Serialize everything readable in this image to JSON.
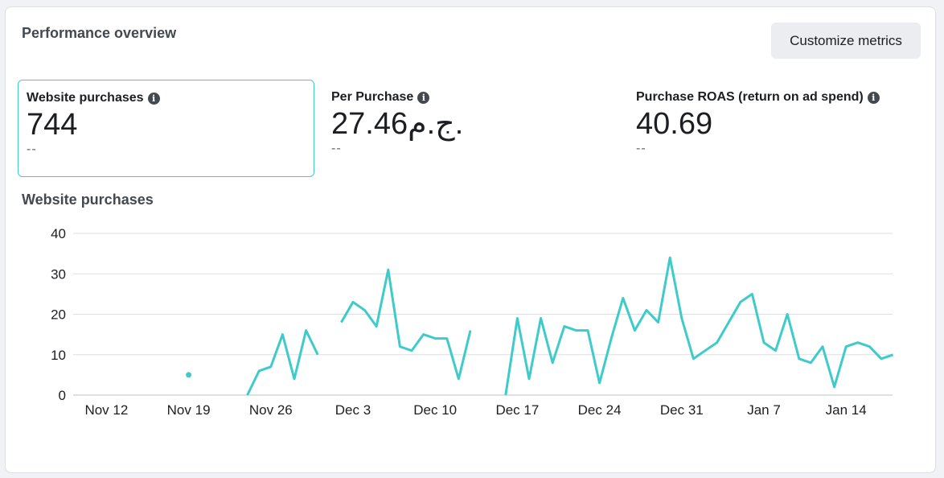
{
  "header": {
    "title": "Performance overview",
    "customize_label": "Customize metrics"
  },
  "metrics": [
    {
      "label": "Website purchases",
      "value": "744",
      "delta": "--",
      "selected": true
    },
    {
      "label": "Per Purchase",
      "value": "27.46ج.م.",
      "delta": "--",
      "selected": false
    },
    {
      "label": "Purchase ROAS (return on ad spend)",
      "value": "40.69",
      "delta": "--",
      "selected": false
    }
  ],
  "colors": {
    "line": "#3ecbca",
    "grid": "#dddfe2",
    "selected_border": "#3ecbca"
  },
  "icons": {
    "info": "info-icon"
  },
  "chart_data": {
    "type": "line",
    "title": "Website purchases",
    "ylim": [
      0,
      40
    ],
    "yticks": [
      0,
      10,
      20,
      30,
      40
    ],
    "grid": true,
    "x_start": "Nov 8",
    "xtick_labels": [
      "Nov 12",
      "Nov 19",
      "Nov 26",
      "Dec 3",
      "Dec 10",
      "Dec 17",
      "Dec 24",
      "Dec 31",
      "Jan 7",
      "Jan 14"
    ],
    "series": [
      {
        "values": [
          null,
          null,
          null,
          null,
          null,
          null,
          null,
          null,
          null,
          null,
          null,
          5,
          null,
          null,
          null,
          null,
          0,
          6,
          7,
          15,
          4,
          16,
          10,
          null,
          18,
          23,
          21,
          17,
          31,
          12,
          11,
          15,
          14,
          14,
          4,
          16,
          null,
          null,
          0,
          19,
          4,
          19,
          8,
          17,
          16,
          16,
          3,
          14,
          24,
          16,
          21,
          18,
          34,
          19,
          9,
          11,
          13,
          18,
          23,
          25,
          13,
          11,
          20,
          9,
          8,
          12,
          2,
          12,
          13,
          12,
          9,
          10
        ]
      }
    ]
  }
}
